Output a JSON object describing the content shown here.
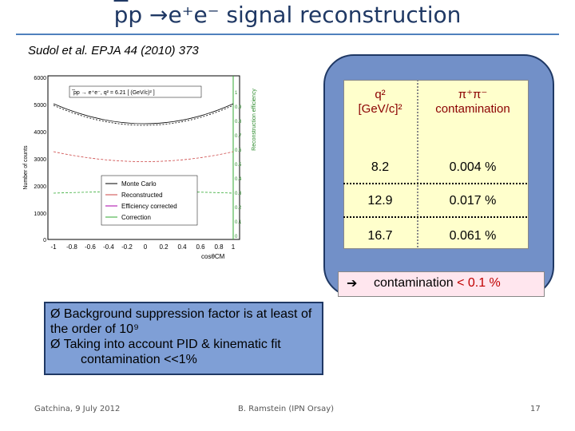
{
  "title": {
    "p_bar": "p",
    "rest": "p →e⁺e⁻ signal reconstruction"
  },
  "reference": "Sudol et al. EPJA 44 (2010) 373",
  "plot": {
    "inset_label": "̅pp → e⁺e⁻, q² = 6.21 [ (GeV/c)² ]",
    "ylabel_left": "Number of counts",
    "ylabel_right": "Reconstruction efficiency",
    "xlabel": "cosθCM",
    "y_ticks_left": [
      "6000",
      "5000",
      "4000",
      "3000",
      "2000",
      "1000",
      "0"
    ],
    "y_ticks_right": [
      "1",
      "0.9",
      "0.8",
      "0.7",
      "0.6",
      "0.5",
      "0.4",
      "0.3",
      "0.2",
      "0.1",
      "0"
    ],
    "x_ticks": [
      "-1",
      "-0.8",
      "-0.6",
      "-0.4",
      "-0.2",
      "0",
      "0.2",
      "0.4",
      "0.6",
      "0.8",
      "1"
    ],
    "legend": [
      "Monte Carlo",
      "Reconstructed",
      "Efficiency corrected",
      "Correction"
    ]
  },
  "table": {
    "col1_header_line1": "q²",
    "col1_header_line2": "[GeV/c]²",
    "col2_header_line1": "π⁺π⁻",
    "col2_header_line2": "contamination",
    "rows": [
      {
        "q2": "8.2",
        "contamination": "0.004 %"
      },
      {
        "q2": "12.9",
        "contamination": "0.017 %"
      },
      {
        "q2": "16.7",
        "contamination": "0.061 %"
      }
    ]
  },
  "summary": {
    "arrow": "➔",
    "text": "contamination ",
    "value": "< 0.1 %"
  },
  "bullets": [
    "Ø   Background suppression factor is  at least of the order of 10⁹",
    "Ø  Taking into account PID & kinematic fit",
    "contamination <<1%"
  ],
  "footer": {
    "left": "Gatchina, 9 July 2012",
    "center": "B. Ramstein  (IPN Orsay)",
    "page": "17"
  },
  "colors": {
    "title": "#1f3864",
    "panel": "#7290c8",
    "table_bg": "#ffffcc",
    "header_text": "#8b0000",
    "contam_value": "#c00000"
  }
}
